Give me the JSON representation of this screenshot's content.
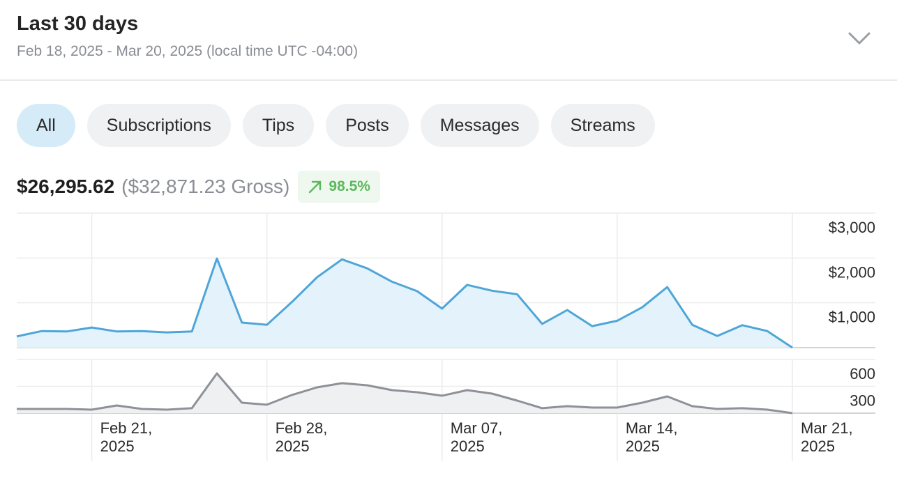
{
  "header": {
    "title": "Last 30 days",
    "subtitle": "Feb 18, 2025 - Mar 20, 2025 (local time UTC -04:00)"
  },
  "tabs": {
    "items": [
      "All",
      "Subscriptions",
      "Tips",
      "Posts",
      "Messages",
      "Streams"
    ],
    "selected": 0
  },
  "summary": {
    "net": "$26,295.62",
    "gross": "($32,871.23 Gross)",
    "change": "98.5%"
  },
  "chart_data": [
    {
      "type": "area",
      "x": [
        "2025-02-18",
        "2025-02-19",
        "2025-02-20",
        "2025-02-21",
        "2025-02-22",
        "2025-02-23",
        "2025-02-24",
        "2025-02-25",
        "2025-02-26",
        "2025-02-27",
        "2025-02-28",
        "2025-03-01",
        "2025-03-02",
        "2025-03-03",
        "2025-03-04",
        "2025-03-05",
        "2025-03-06",
        "2025-03-07",
        "2025-03-08",
        "2025-03-09",
        "2025-03-10",
        "2025-03-11",
        "2025-03-12",
        "2025-03-13",
        "2025-03-14",
        "2025-03-15",
        "2025-03-16",
        "2025-03-17",
        "2025-03-18",
        "2025-03-19",
        "2025-03-20",
        "2025-03-21"
      ],
      "series": [
        {
          "color": "#4ea6d8",
          "fill": "#e4f2fb",
          "values": [
            250,
            370,
            360,
            450,
            360,
            370,
            340,
            360,
            1990,
            560,
            510,
            1020,
            1570,
            1970,
            1770,
            1470,
            1260,
            870,
            1400,
            1270,
            1190,
            530,
            840,
            480,
            600,
            900,
            1350,
            510,
            260,
            500,
            370,
            0
          ]
        }
      ],
      "xlim": [
        "2025-02-18",
        "2025-03-21"
      ],
      "ylim": [
        0,
        3000
      ],
      "yticks": [
        {
          "value": 1000,
          "label": "$1,000"
        },
        {
          "value": 2000,
          "label": "$2,000"
        },
        {
          "value": 3000,
          "label": "$3,000"
        }
      ],
      "grid": true
    },
    {
      "type": "area",
      "x": [
        "2025-02-18",
        "2025-02-19",
        "2025-02-20",
        "2025-02-21",
        "2025-02-22",
        "2025-02-23",
        "2025-02-24",
        "2025-02-25",
        "2025-02-26",
        "2025-02-27",
        "2025-02-28",
        "2025-03-01",
        "2025-03-02",
        "2025-03-03",
        "2025-03-04",
        "2025-03-05",
        "2025-03-06",
        "2025-03-07",
        "2025-03-08",
        "2025-03-09",
        "2025-03-10",
        "2025-03-11",
        "2025-03-12",
        "2025-03-13",
        "2025-03-14",
        "2025-03-15",
        "2025-03-16",
        "2025-03-17",
        "2025-03-18",
        "2025-03-19",
        "2025-03-20",
        "2025-03-21"
      ],
      "series": [
        {
          "color": "#8e9197",
          "fill": "#eff0f2",
          "values": [
            47,
            47,
            47,
            39,
            86,
            47,
            39,
            55,
            444,
            117,
            94,
            203,
            288,
            335,
            312,
            257,
            234,
            195,
            257,
            218,
            140,
            55,
            78,
            62,
            62,
            117,
            187,
            78,
            47,
            55,
            39,
            0
          ]
        }
      ],
      "xlim": [
        "2025-02-18",
        "2025-03-21"
      ],
      "ylim": [
        0,
        600
      ],
      "yticks": [
        300,
        600
      ],
      "xticks": [
        {
          "value": "2025-02-21",
          "label": "Feb 21, 2025"
        },
        {
          "value": "2025-02-28",
          "label": "Feb 28, 2025"
        },
        {
          "value": "2025-03-07",
          "label": "Mar 07, 2025"
        },
        {
          "value": "2025-03-14",
          "label": "Mar 14, 2025"
        },
        {
          "value": "2025-03-21",
          "label": "Mar 21, 2025"
        }
      ],
      "grid": true
    }
  ]
}
